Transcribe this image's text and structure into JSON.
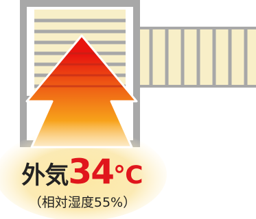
{
  "illustration": {
    "outside_label": "外気",
    "temperature_value": "34",
    "temperature_unit": "℃",
    "humidity_text": "（相対湿度55%）"
  },
  "colors": {
    "frame": "#a8a8a8",
    "glass_fill": "#f8efc8",
    "arrow_red": "#e8140f",
    "arrow_orange": "#f7a21a",
    "glow_yellow": "#fce49a",
    "text_dark": "#222222",
    "temp_red": "#e0161c"
  },
  "icons": {
    "arrow": "upward-heat-arrow-icon",
    "window": "window-frame-icon",
    "fence": "louver-panel-icon"
  }
}
